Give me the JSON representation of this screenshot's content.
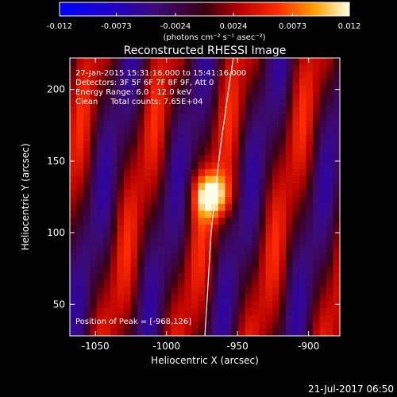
{
  "colorbar": {
    "ticks": [
      "-0.012",
      "-0.0073",
      "-0.0024",
      "0.0024",
      "0.0073",
      "0.012"
    ],
    "range": [
      -0.012,
      0.012
    ],
    "unit_label": "(photons cm⁻² s⁻¹ asec⁻²)"
  },
  "chart_data": {
    "type": "heatmap",
    "title": "Reconstructed RHESSI Image",
    "xlabel": "Heliocentric X (arcsec)",
    "ylabel": "Heliocentric Y (arcsec)",
    "xlim": [
      -1068,
      -878
    ],
    "ylim": [
      28,
      222
    ],
    "xticks": [
      -1050,
      -1000,
      -950,
      -900
    ],
    "yticks": [
      50,
      100,
      150,
      200
    ],
    "peak": {
      "x": -968,
      "y": 126
    },
    "limb_curve": [
      [
        -973,
        28
      ],
      [
        -971,
        60
      ],
      [
        -969,
        95
      ],
      [
        -966,
        126
      ],
      [
        -962,
        160
      ],
      [
        -957,
        195
      ],
      [
        -953,
        222
      ]
    ],
    "annotations": [
      "27-Jan-2015 15:31:16.000 to 15:41:16.000",
      "Detectors: 3F 5F 6F 7F 8F 9F, Att 0",
      "Energy Range: 6.0 - 12.0 keV",
      "Clean     Total counts: 7.65E+04",
      "Position of Peak = [-968,126]"
    ]
  },
  "footer": {
    "timestamp": "21-Jul-2017 06:50"
  }
}
